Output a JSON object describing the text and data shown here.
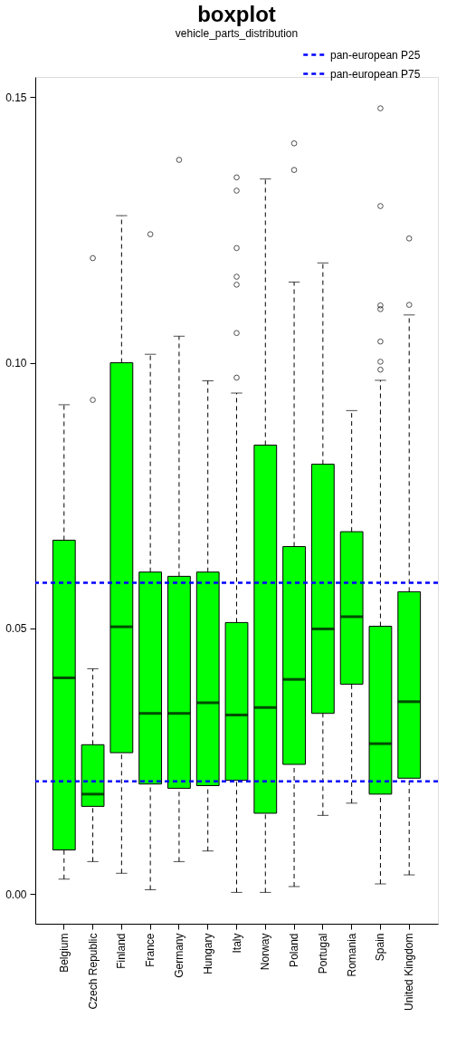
{
  "chart_data": {
    "type": "box",
    "title": "boxplot",
    "subtitle": "vehicle_parts_distribution",
    "categories": [
      "Belgium",
      "Czech Republic",
      "Finland",
      "France",
      "Germany",
      "Hungary",
      "Italy",
      "Norway",
      "Poland",
      "Portugal",
      "Romania",
      "Spain",
      "United Kingdom"
    ],
    "series": [
      {
        "color": "#00ff00",
        "line_style": "dashed",
        "boxes": [
          {
            "low": 0.0028,
            "q1": 0.0083,
            "median": 0.0407,
            "q3": 0.0666,
            "high": 0.0921
          },
          {
            "low": 0.0061,
            "q1": 0.0165,
            "median": 0.0188,
            "q3": 0.0281,
            "high": 0.0424,
            "outliers": [
              0.1197,
              0.093
            ]
          },
          {
            "low": 0.0039,
            "q1": 0.0266,
            "median": 0.0503,
            "q3": 0.1,
            "high": 0.1277
          },
          {
            "low": 0.0008,
            "q1": 0.0207,
            "median": 0.034,
            "q3": 0.0606,
            "high": 0.1016,
            "outliers": [
              0.1242
            ]
          },
          {
            "low": 0.0061,
            "q1": 0.0199,
            "median": 0.034,
            "q3": 0.0598,
            "high": 0.105,
            "outliers": [
              0.1382
            ]
          },
          {
            "low": 0.0081,
            "q1": 0.0204,
            "median": 0.036,
            "q3": 0.0606,
            "high": 0.0966
          },
          {
            "low": 0.0003,
            "q1": 0.0214,
            "median": 0.0337,
            "q3": 0.0511,
            "high": 0.0943,
            "outliers": [
              0.1349,
              0.1324,
              0.1216,
              0.1162,
              0.1147,
              0.1056,
              0.0972
            ]
          },
          {
            "low": 0.0003,
            "q1": 0.0152,
            "median": 0.0351,
            "q3": 0.0845,
            "high": 0.1346
          },
          {
            "low": 0.0014,
            "q1": 0.0244,
            "median": 0.0404,
            "q3": 0.0654,
            "high": 0.1152,
            "outliers": [
              0.1413,
              0.1363
            ]
          },
          {
            "low": 0.0148,
            "q1": 0.034,
            "median": 0.0499,
            "q3": 0.0809,
            "high": 0.1188
          },
          {
            "low": 0.0171,
            "q1": 0.0395,
            "median": 0.0522,
            "q3": 0.0682,
            "high": 0.091
          },
          {
            "low": 0.0019,
            "q1": 0.0188,
            "median": 0.0283,
            "q3": 0.0504,
            "high": 0.0967,
            "outliers": [
              0.1479,
              0.1295,
              0.1108,
              0.1101,
              0.104,
              0.1002,
              0.0987
            ]
          },
          {
            "low": 0.0036,
            "q1": 0.0218,
            "median": 0.0362,
            "q3": 0.0569,
            "high": 0.109,
            "outliers": [
              0.1234,
              0.1109
            ]
          }
        ]
      }
    ],
    "ylim": [
      -0.0056,
      0.1538
    ],
    "yticks": [
      {
        "value": 0,
        "label": "0.00"
      },
      0.05,
      {
        "value": 0.1,
        "label": "0.10"
      },
      0.15
    ],
    "grid": false,
    "legend": "top right",
    "ref_lines": [
      {
        "axis": "y",
        "value": 0.0212,
        "label": "pan-european P25",
        "color": "#0000ff",
        "line_style": "dashed"
      },
      {
        "axis": "y",
        "value": 0.0586,
        "label": "pan-european P75",
        "color": "#0000ff",
        "line_style": "dashed"
      }
    ]
  }
}
